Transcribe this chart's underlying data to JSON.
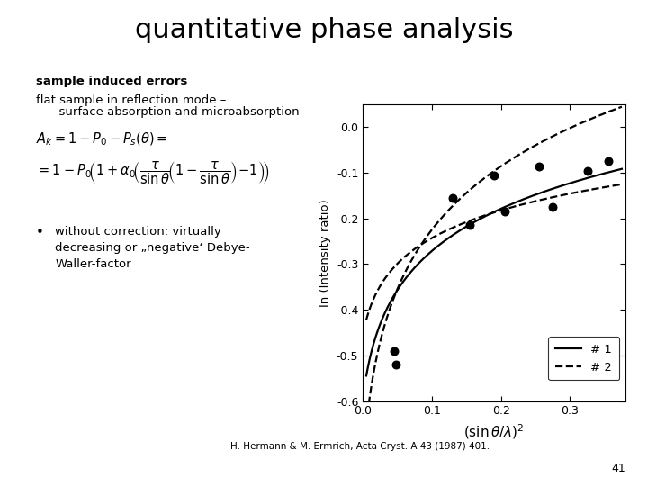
{
  "title": "quantitative phase analysis",
  "subtitle": "sample induced errors",
  "text_line1": "flat sample in reflection mode –",
  "text_line2": "      surface absorption and microabsorption",
  "bullet_text": "without correction: virtually\ndecreasing or „neg ative‘ Debye-\nWaller-factor",
  "ylabel": "ln (Intensity ratio)",
  "xlim": [
    0.0,
    0.38
  ],
  "ylim": [
    -0.6,
    0.05
  ],
  "xticks": [
    0.0,
    0.1,
    0.2,
    0.3
  ],
  "yticks": [
    0.0,
    -0.1,
    -0.2,
    -0.3,
    -0.4,
    -0.5,
    -0.6
  ],
  "scatter_x": [
    0.045,
    0.048,
    0.13,
    0.155,
    0.19,
    0.205,
    0.255,
    0.275,
    0.325,
    0.355
  ],
  "scatter_y": [
    -0.49,
    -0.52,
    -0.155,
    -0.215,
    -0.105,
    -0.185,
    -0.085,
    -0.175,
    -0.095,
    -0.075
  ],
  "legend_label1": "# 1",
  "legend_label2": "# 2",
  "reference": "H. Hermann & M. Ermrich, Acta Cryst. A 43 (1987) 401.",
  "page_number": "41",
  "background_color": "#ffffff",
  "curve1_a": 0.115,
  "curve1_b": 0.022,
  "curve1_c": -0.595,
  "curve2u_a": 0.165,
  "curve2u_b": 0.018,
  "curve2u_c": -0.73,
  "curve2l_a": 0.075,
  "curve2l_b": 0.025,
  "curve2l_c": -0.46
}
